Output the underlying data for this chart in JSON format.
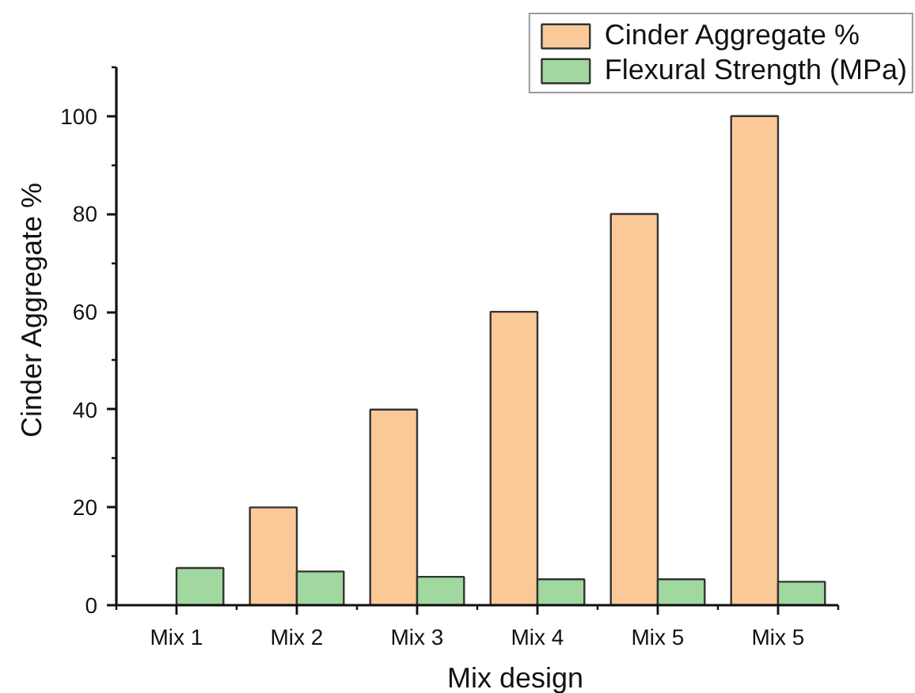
{
  "chart_data": {
    "type": "bar",
    "xlabel": "Mix design",
    "ylabel": "Cinder Aggregate %",
    "categories": [
      "Mix 1",
      "Mix 2",
      "Mix 3",
      "Mix 4",
      "Mix 5",
      "Mix 5"
    ],
    "series": [
      {
        "name": "Cinder Aggregate %",
        "color": "#fbc898",
        "values": [
          null,
          20,
          40,
          60,
          80,
          100
        ]
      },
      {
        "name": "Flexural Strength (MPa)",
        "color": "#a0d8a0",
        "values": [
          7.6,
          6.9,
          5.8,
          5.3,
          5.3,
          4.8
        ]
      }
    ],
    "ylim": [
      0,
      110
    ],
    "yticks": [
      0,
      {
        "value": 10,
        "label": null
      },
      20,
      {
        "value": 30,
        "label": null
      },
      40,
      {
        "value": 50,
        "label": null
      },
      60,
      {
        "value": 70,
        "label": null
      },
      80,
      {
        "value": 90,
        "label": null
      },
      100,
      {
        "value": 110,
        "label": null
      }
    ],
    "legend": "top right"
  }
}
